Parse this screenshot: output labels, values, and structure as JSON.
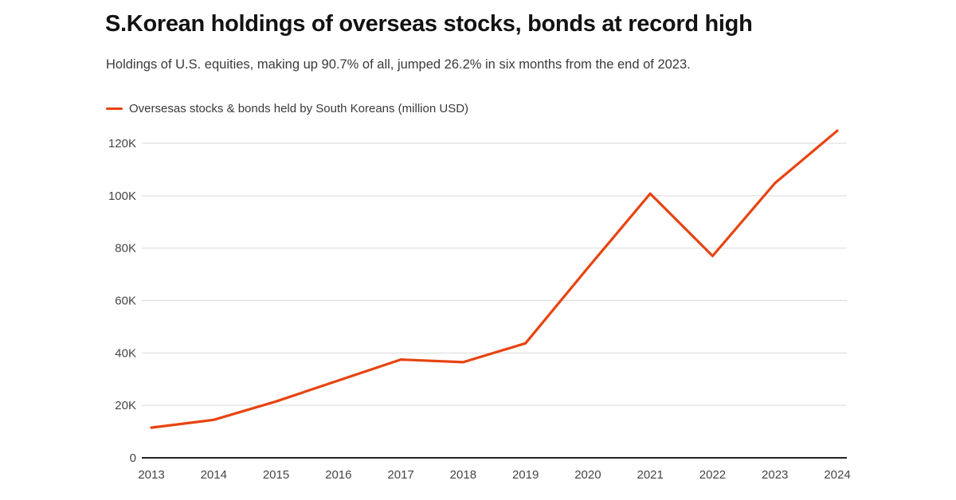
{
  "header": {
    "title": "S.Korean holdings of overseas stocks, bonds at record high",
    "subtitle": "Holdings of U.S. equities, making up 90.7% of all, jumped 26.2% in six months from the end of 2023."
  },
  "legend": {
    "label": "Oversesas stocks & bonds held by South Koreans (million USD)",
    "marker_color": "#e8430f"
  },
  "colors": {
    "line": "#e8430f",
    "grid": "#d9d9d9",
    "zero_axis": "#222222",
    "tick_text": "#454545"
  },
  "chart_data": {
    "type": "line",
    "title": "S.Korean holdings of overseas stocks, bonds at record high",
    "subtitle": "Holdings of U.S. equities, making up 90.7% of all, jumped 26.2% in six months from the end of 2023.",
    "x": [
      2013,
      2014,
      2015,
      2016,
      2017,
      2018,
      2019,
      2020,
      2021,
      2022,
      2023,
      2024
    ],
    "series": [
      {
        "name": "Oversesas stocks & bonds held by South Koreans (million USD)",
        "color": "#e8430f",
        "values": [
          11500,
          14500,
          21500,
          29500,
          37500,
          36500,
          43700,
          72500,
          100800,
          77000,
          104800,
          124800
        ]
      }
    ],
    "xlabel": "",
    "ylabel": "",
    "unit": "million USD",
    "ylim": [
      0,
      120000
    ],
    "yticks": [
      0,
      20000,
      40000,
      60000,
      80000,
      100000,
      120000
    ],
    "ytick_labels": [
      "0",
      "20K",
      "40K",
      "60K",
      "80K",
      "100K",
      "120K"
    ],
    "grid": "horizontal",
    "legend_position": "top-left"
  }
}
